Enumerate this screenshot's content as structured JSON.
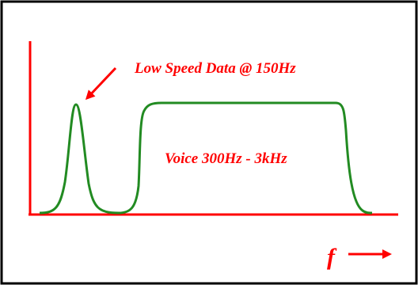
{
  "labels": {
    "low_speed": "Low Speed Data @ 150Hz",
    "voice": "Voice 300Hz - 3kHz",
    "freq_axis": "f"
  },
  "colors": {
    "border": "#000000",
    "axes": "#ff0000",
    "curve": "#228b22",
    "text": "#ff0000",
    "background": "#ffffff"
  },
  "icons": {
    "pointer": "arrow-down-left-icon",
    "axis_direction": "arrow-right-icon"
  }
}
